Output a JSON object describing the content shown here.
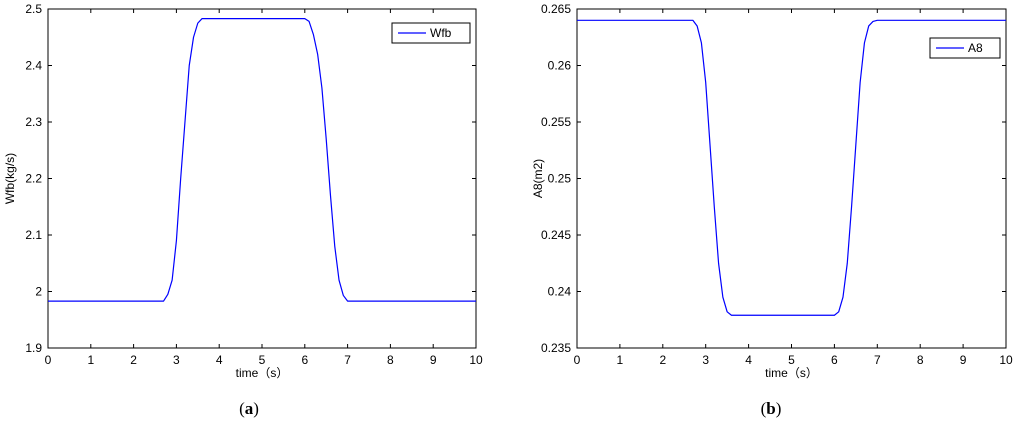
{
  "chart_data": [
    {
      "type": "line",
      "caption": "a",
      "xlabel": "time（s）",
      "ylabel": "Wfb(kg/s)",
      "xlim": [
        0,
        10
      ],
      "ylim": [
        1.9,
        2.5
      ],
      "xticks": [
        "0",
        "1",
        "2",
        "3",
        "4",
        "5",
        "6",
        "7",
        "8",
        "9",
        "10"
      ],
      "yticks": [
        "1.9",
        "2",
        "2.1",
        "2.2",
        "2.3",
        "2.4",
        "2.5"
      ],
      "grid": false,
      "legend_position": "top-right",
      "series": [
        {
          "name": "Wfb",
          "color": "#0000ff",
          "x": [
            0,
            2.7,
            2.8,
            2.9,
            3.0,
            3.1,
            3.2,
            3.3,
            3.4,
            3.5,
            3.6,
            3.7,
            6.0,
            6.1,
            6.2,
            6.3,
            6.4,
            6.5,
            6.6,
            6.7,
            6.8,
            6.9,
            7.0,
            7.1,
            7.2,
            10
          ],
          "y": [
            1.983,
            1.983,
            1.995,
            2.02,
            2.09,
            2.2,
            2.3,
            2.4,
            2.45,
            2.475,
            2.483,
            2.483,
            2.483,
            2.478,
            2.455,
            2.42,
            2.36,
            2.27,
            2.17,
            2.08,
            2.02,
            1.993,
            1.983,
            1.983,
            1.983,
            1.983
          ]
        }
      ]
    },
    {
      "type": "line",
      "caption": "b",
      "xlabel": "time（s）",
      "ylabel": "A8(m2)",
      "xlim": [
        0,
        10
      ],
      "ylim": [
        0.235,
        0.265
      ],
      "xticks": [
        "0",
        "1",
        "2",
        "3",
        "4",
        "5",
        "6",
        "7",
        "8",
        "9",
        "10"
      ],
      "yticks": [
        "0.235",
        "0.24",
        "0.245",
        "0.25",
        "0.255",
        "0.26",
        "0.265"
      ],
      "grid": false,
      "legend_position": "top-right",
      "series": [
        {
          "name": "A8",
          "color": "#0000ff",
          "x": [
            0,
            2.7,
            2.8,
            2.9,
            3.0,
            3.1,
            3.2,
            3.3,
            3.4,
            3.5,
            3.6,
            3.7,
            6.0,
            6.1,
            6.2,
            6.3,
            6.4,
            6.5,
            6.6,
            6.7,
            6.8,
            6.9,
            7.0,
            7.1,
            7.2,
            10
          ],
          "y": [
            0.264,
            0.264,
            0.2635,
            0.262,
            0.2585,
            0.253,
            0.2475,
            0.2425,
            0.2395,
            0.2382,
            0.2379,
            0.2379,
            0.2379,
            0.2382,
            0.2395,
            0.2425,
            0.2475,
            0.253,
            0.2585,
            0.262,
            0.2635,
            0.2639,
            0.264,
            0.264,
            0.264,
            0.264
          ]
        }
      ]
    }
  ]
}
